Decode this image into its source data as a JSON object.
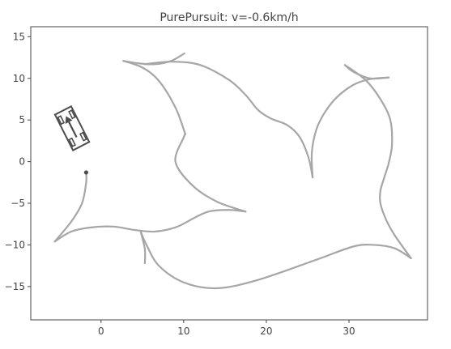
{
  "chart_data": {
    "type": "line",
    "title": "PurePursuit: v=-0.6km/h",
    "xlabel": "",
    "ylabel": "",
    "xlim": [
      -8.5,
      39.5
    ],
    "ylim": [
      -19,
      16.2
    ],
    "xticks": [
      0,
      10,
      20,
      30
    ],
    "yticks": [
      -15,
      -10,
      -5,
      0,
      5,
      10,
      15
    ],
    "xtick_labels": [
      "0",
      "10",
      "20",
      "30"
    ],
    "ytick_labels": [
      "−15",
      "−10",
      "−5",
      "0",
      "5",
      "10",
      "15"
    ],
    "grid": false,
    "legend": "none",
    "colors": {
      "path": "#a6a6a6",
      "vehicle": "#4d4d4d",
      "axes": "#444444",
      "current_position": "#4d4d4d"
    },
    "series": [
      {
        "values": [
          [
            -5.6,
            -9.6
          ],
          [
            -3.6,
            -8.4
          ],
          [
            -1.2,
            -7.9
          ],
          [
            1.5,
            -7.8
          ],
          [
            4,
            -8.2
          ],
          [
            6.5,
            -8.4
          ],
          [
            9,
            -7.9
          ],
          [
            11,
            -6.9
          ]
        ]
      },
      {
        "values": [
          [
            -5.6,
            -9.6
          ],
          [
            -3.6,
            -7.2
          ],
          [
            -2.3,
            -5
          ],
          [
            -1.8,
            -2.5
          ],
          [
            -1.8,
            -1.3
          ]
        ]
      },
      {
        "values": [
          [
            17.5,
            -6
          ],
          [
            15.5,
            -5.8
          ],
          [
            13,
            -6
          ],
          [
            11,
            -6.9
          ]
        ]
      },
      {
        "values": [
          [
            17.5,
            -6
          ],
          [
            14,
            -4.8
          ],
          [
            11,
            -2.8
          ],
          [
            9,
            0
          ],
          [
            10,
            2.9
          ],
          [
            10.2,
            3.3
          ]
        ]
      },
      {
        "values": [
          [
            10.2,
            3.3
          ],
          [
            9,
            6.5
          ],
          [
            7,
            9.7
          ],
          [
            5,
            11.3
          ],
          [
            2.7,
            12.1
          ]
        ]
      },
      {
        "values": [
          [
            2.7,
            12.1
          ],
          [
            4.6,
            11.8
          ],
          [
            6.5,
            11.7
          ],
          [
            8.5,
            12.1
          ],
          [
            10.1,
            13
          ]
        ]
      },
      {
        "values": [
          [
            5.3,
            11.7
          ],
          [
            8.5,
            12
          ],
          [
            12,
            11.6
          ],
          [
            15.5,
            9.8
          ],
          [
            17.5,
            8
          ],
          [
            19,
            6.2
          ],
          [
            20.5,
            5.2
          ],
          [
            22.5,
            4.4
          ],
          [
            24,
            3
          ],
          [
            25.1,
            0.5
          ],
          [
            25.6,
            -1.9
          ]
        ]
      },
      {
        "values": [
          [
            25.6,
            -1.9
          ],
          [
            25.5,
            1
          ],
          [
            26,
            3.7
          ],
          [
            27,
            5.8
          ],
          [
            28.5,
            7.7
          ],
          [
            30.5,
            9.2
          ],
          [
            32.5,
            9.9
          ],
          [
            34.8,
            10.1
          ]
        ]
      },
      {
        "values": [
          [
            34.8,
            10.1
          ],
          [
            32.5,
            10
          ],
          [
            30.5,
            10.8
          ],
          [
            29.5,
            11.6
          ]
        ]
      },
      {
        "values": [
          [
            29.5,
            11.6
          ],
          [
            32,
            9.8
          ],
          [
            33.8,
            7.5
          ],
          [
            35,
            5
          ],
          [
            35.2,
            2
          ],
          [
            34.8,
            -0.2
          ],
          [
            34.3,
            -1.8
          ],
          [
            33.8,
            -3.5
          ],
          [
            33.8,
            -5
          ],
          [
            34.5,
            -7
          ],
          [
            35.5,
            -8.8
          ],
          [
            37.5,
            -11.6
          ]
        ]
      },
      {
        "values": [
          [
            37.5,
            -11.6
          ],
          [
            35.5,
            -10.4
          ],
          [
            33,
            -10
          ],
          [
            30.5,
            -10.2
          ],
          [
            26,
            -11.8
          ],
          [
            19,
            -14.2
          ],
          [
            14,
            -15.2
          ],
          [
            10,
            -14.5
          ],
          [
            7,
            -12.5
          ],
          [
            5.5,
            -10
          ],
          [
            4.8,
            -8.4
          ]
        ]
      },
      {
        "values": [
          [
            4.8,
            -8.4
          ],
          [
            5.3,
            -10.5
          ],
          [
            5.3,
            -12.2
          ]
        ]
      }
    ],
    "current_position": {
      "x": -1.8,
      "y": -1.3
    },
    "vehicle": {
      "x": -3.5,
      "y": 4,
      "heading_deg": 117,
      "length": 4.8,
      "width": 2.2
    }
  }
}
